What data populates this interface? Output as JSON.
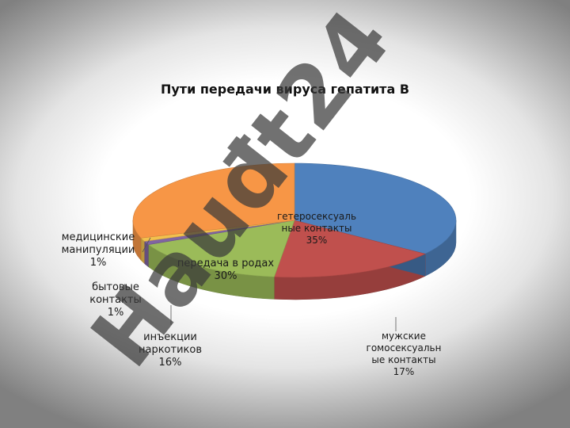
{
  "chart_data": {
    "type": "pie",
    "title": "Пути передачи вируса гепатита В",
    "slices": [
      {
        "name": "гетеросексуальные контакты",
        "value": 35,
        "label_lines": [
          "гетеросексуаль",
          "ные контакты"
        ],
        "pct": "35%",
        "color": "#4f81bd"
      },
      {
        "name": "мужские гомосексуальные контакты",
        "value": 17,
        "label_lines": [
          "мужские",
          "гомосексуальн",
          "ые контакты"
        ],
        "pct": "17%",
        "color": "#c0504d"
      },
      {
        "name": "инъекции наркотиков",
        "value": 16,
        "label_lines": [
          "инъекции",
          "наркотиков"
        ],
        "pct": "16%",
        "color": "#9bbb59"
      },
      {
        "name": "бытовые контакты",
        "value": 1,
        "label_lines": [
          "бытовые",
          "контакты"
        ],
        "pct": "1%",
        "color": "#8064a2"
      },
      {
        "name": "медицинские манипуляции",
        "value": 1,
        "label_lines": [
          "медицинские",
          "манипуляции"
        ],
        "pct": "1%",
        "color": "#f2c14e"
      },
      {
        "name": "передача в родах",
        "value": 30,
        "label_lines": [
          "передача в родах"
        ],
        "pct": "30%",
        "color": "#f79646"
      }
    ],
    "legend": "none",
    "style": "3d"
  },
  "watermark": "Hauđt24"
}
